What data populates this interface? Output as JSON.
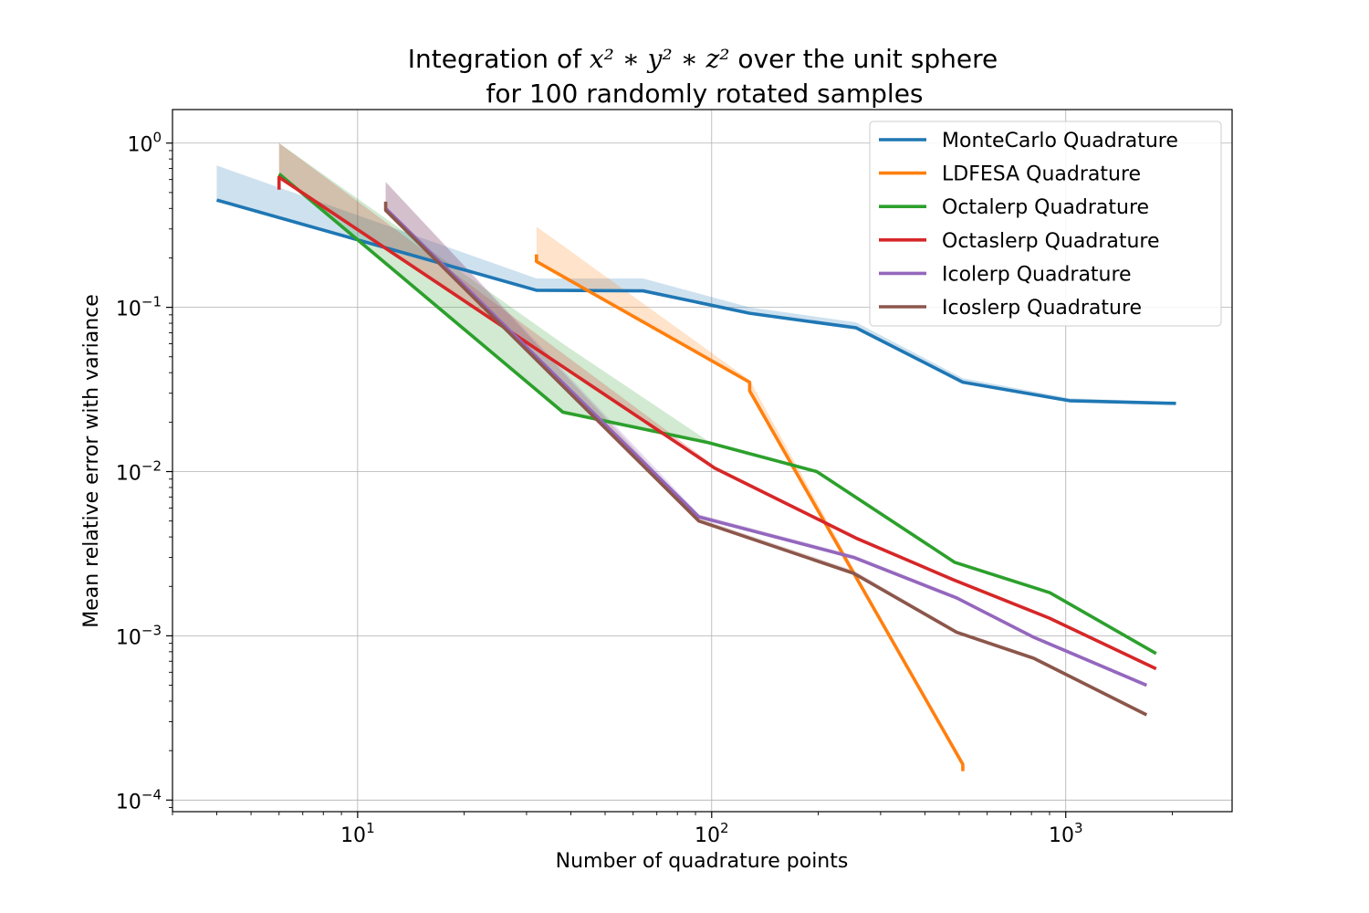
{
  "chart_data": {
    "type": "line",
    "title_prefix": "Integration of ",
    "title_math": "x² ∗ y² ∗ z²",
    "title_suffix": " over the unit sphere",
    "title_line2": "for 100 randomly rotated samples",
    "xlabel": "Number of quadrature points",
    "ylabel": "Mean relative error with variance",
    "xscale": "log",
    "yscale": "log",
    "xlim": [
      3,
      2950
    ],
    "ylim": [
      8.5e-05,
      1.6
    ],
    "grid": true,
    "legend_position": "top-right",
    "x_tick_labels": [
      {
        "value": 10,
        "base": "10",
        "exp": "1"
      },
      {
        "value": 100,
        "base": "10",
        "exp": "2"
      },
      {
        "value": 1000,
        "base": "10",
        "exp": "3"
      }
    ],
    "y_tick_labels": [
      {
        "value": 1,
        "base": "10",
        "exp": "0"
      },
      {
        "value": 0.1,
        "base": "10",
        "exp": "−1"
      },
      {
        "value": 0.01,
        "base": "10",
        "exp": "−2"
      },
      {
        "value": 0.001,
        "base": "10",
        "exp": "−3"
      },
      {
        "value": 0.0001,
        "base": "10",
        "exp": "−4"
      }
    ],
    "series": [
      {
        "name": "MonteCarlo Quadrature",
        "color": "#1f77b4",
        "x": [
          4,
          32,
          64,
          128,
          256,
          512,
          1024,
          2048
        ],
        "y": [
          0.45,
          0.127,
          0.126,
          0.092,
          0.075,
          0.035,
          0.027,
          0.026
        ],
        "upper": [
          0.73,
          0.15,
          0.15,
          0.1,
          0.081,
          0.037,
          0.028,
          0.0265
        ]
      },
      {
        "name": "LDFESA Quadrature",
        "color": "#ff7f0e",
        "x": [
          32,
          32,
          128,
          128,
          512,
          512
        ],
        "y": [
          0.21,
          0.19,
          0.035,
          0.031,
          0.000165,
          0.00015
        ],
        "upper": [
          0.31,
          0.31,
          0.036,
          0.036,
          0.00016,
          0.00016
        ]
      },
      {
        "name": "Octalerp Quadrature",
        "color": "#2ca02c",
        "x": [
          6,
          38,
          98,
          198,
          486,
          902,
          1800
        ],
        "y": [
          0.65,
          0.023,
          0.015,
          0.01,
          0.0028,
          0.00183,
          0.00078
        ],
        "upper": [
          1.0,
          0.06,
          0.0153,
          0.0102,
          0.00285,
          0.00186,
          0.00079
        ]
      },
      {
        "name": "Octaslerp Quadrature",
        "color": "#d62728",
        "x": [
          6,
          6,
          102,
          258,
          480,
          900,
          1800
        ],
        "y": [
          0.52,
          0.62,
          0.0105,
          0.0039,
          0.0022,
          0.00128,
          0.00063
        ],
        "upper": [
          1.0,
          1.0,
          0.0108,
          0.004,
          0.00225,
          0.0013,
          0.00064
        ]
      },
      {
        "name": "Icolerp Quadrature",
        "color": "#9467bd",
        "x": [
          12,
          92,
          252,
          492,
          812,
          1692
        ],
        "y": [
          0.4,
          0.0053,
          0.003,
          0.0017,
          0.00098,
          0.0005
        ],
        "upper": [
          0.58,
          0.0055,
          0.0031,
          0.00175,
          0.001,
          0.0005
        ]
      },
      {
        "name": "Icoslerp Quadrature",
        "color": "#8c564b",
        "x": [
          12,
          12,
          92,
          252,
          492,
          812,
          1692
        ],
        "y": [
          0.44,
          0.39,
          0.005,
          0.0024,
          0.00105,
          0.00073,
          0.00033
        ],
        "upper": [
          0.58,
          0.58,
          0.0052,
          0.0025,
          0.00108,
          0.00075,
          0.00034
        ]
      }
    ]
  }
}
